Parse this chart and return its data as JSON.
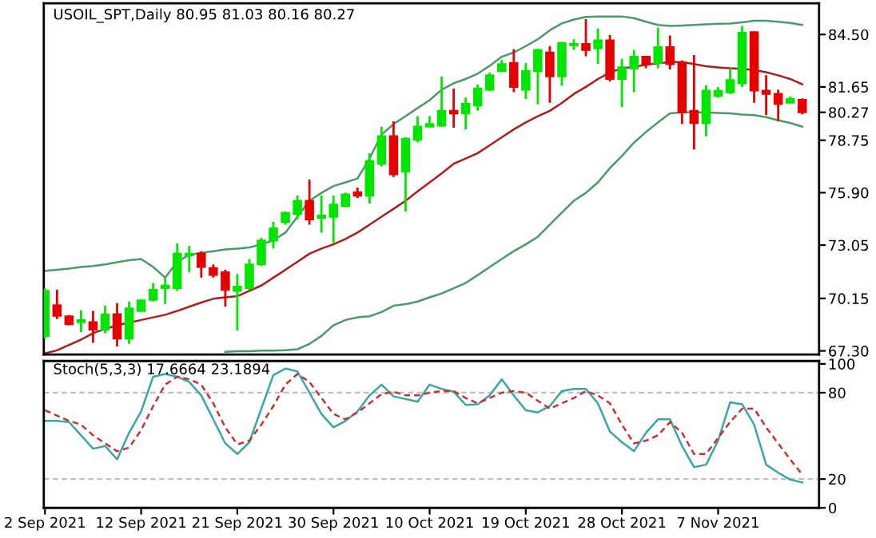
{
  "chart_data": [
    {
      "type": "candlestick",
      "title": "USOIL_SPT,Daily 80.95 81.03 80.16 80.27",
      "categories": [
        null,
        null,
        null,
        null,
        null,
        null,
        null,
        null,
        null,
        null,
        null,
        null,
        null,
        null,
        null,
        null,
        null,
        null,
        null,
        null,
        null,
        null,
        null,
        null,
        null,
        null,
        null,
        null,
        null,
        null,
        null,
        null,
        null,
        null,
        null,
        null,
        null,
        null,
        null,
        null,
        null,
        null,
        null,
        null,
        null,
        null,
        null,
        null,
        null,
        null,
        null,
        null,
        null,
        null,
        null,
        null,
        null,
        null,
        null,
        null,
        null,
        null,
        null,
        null
      ],
      "ohlc": [
        [
          68.11,
          70.7,
          67.97,
          70.56
        ],
        [
          69.78,
          70.62,
          69.03,
          69.21
        ],
        [
          69.18,
          69.24,
          68.69,
          68.75
        ],
        [
          68.86,
          69.5,
          68.31,
          68.98
        ],
        [
          68.86,
          69.47,
          67.74,
          68.46
        ],
        [
          68.46,
          69.76,
          68.26,
          69.27
        ],
        [
          69.29,
          69.9,
          67.54,
          67.97
        ],
        [
          67.97,
          69.98,
          67.68,
          69.61
        ],
        [
          69.47,
          70.09,
          69.47,
          70.04
        ],
        [
          70.07,
          70.99,
          69.98,
          70.62
        ],
        [
          70.71,
          71.28,
          69.84,
          70.85
        ],
        [
          70.71,
          73.15,
          70.56,
          72.58
        ],
        [
          72.49,
          73.01,
          71.57,
          72.58
        ],
        [
          72.58,
          72.72,
          71.28,
          71.86
        ],
        [
          71.8,
          72.0,
          71.28,
          71.43
        ],
        [
          71.57,
          71.71,
          69.7,
          70.62
        ],
        [
          70.56,
          71.48,
          68.41,
          70.79
        ],
        [
          70.71,
          72.29,
          70.62,
          72.0
        ],
        [
          72.0,
          73.44,
          71.91,
          73.3
        ],
        [
          73.3,
          74.31,
          72.87,
          73.96
        ],
        [
          74.31,
          74.88,
          74.16,
          74.8
        ],
        [
          74.74,
          75.74,
          74.45,
          75.46
        ],
        [
          75.46,
          76.61,
          74.16,
          74.45
        ],
        [
          74.53,
          75.74,
          73.73,
          74.65
        ],
        [
          74.59,
          75.74,
          73.15,
          75.25
        ],
        [
          75.17,
          75.89,
          75.11,
          75.8
        ],
        [
          75.92,
          76.18,
          75.6,
          75.74
        ],
        [
          75.74,
          78.05,
          75.31,
          77.62
        ],
        [
          77.47,
          79.49,
          77.33,
          78.97
        ],
        [
          78.97,
          79.78,
          76.75,
          76.9
        ],
        [
          77.04,
          78.91,
          74.88,
          78.83
        ],
        [
          78.77,
          80.06,
          78.63,
          79.49
        ],
        [
          79.49,
          80.06,
          79.49,
          79.63
        ],
        [
          79.55,
          82.22,
          79.49,
          80.35
        ],
        [
          80.35,
          81.56,
          79.43,
          80.21
        ],
        [
          80.21,
          81.07,
          79.34,
          80.73
        ],
        [
          80.64,
          81.79,
          80.35,
          81.56
        ],
        [
          81.5,
          82.43,
          81.42,
          82.28
        ],
        [
          82.51,
          83.12,
          82.51,
          82.89
        ],
        [
          82.95,
          83.71,
          81.36,
          81.65
        ],
        [
          81.5,
          82.95,
          80.99,
          82.51
        ],
        [
          82.51,
          83.72,
          80.7,
          83.66
        ],
        [
          83.52,
          83.87,
          80.79,
          82.22
        ],
        [
          82.22,
          84.1,
          81.71,
          84.04
        ],
        [
          83.92,
          84.24,
          83.66,
          83.98
        ],
        [
          83.98,
          85.33,
          83.32,
          83.66
        ],
        [
          83.75,
          84.82,
          82.89,
          84.18
        ],
        [
          84.18,
          84.47,
          81.94,
          82.08
        ],
        [
          82.08,
          83.18,
          80.55,
          82.71
        ],
        [
          82.66,
          83.66,
          81.36,
          83.29
        ],
        [
          83.29,
          83.32,
          82.66,
          82.89
        ],
        [
          82.95,
          84.87,
          82.66,
          83.81
        ],
        [
          83.81,
          84.44,
          82.6,
          82.89
        ],
        [
          82.95,
          83.09,
          79.63,
          80.27
        ],
        [
          80.35,
          83.38,
          78.25,
          79.69
        ],
        [
          79.69,
          81.74,
          78.97,
          81.45
        ],
        [
          81.16,
          81.65,
          81.07,
          81.45
        ],
        [
          81.36,
          82.66,
          81.27,
          82.02
        ],
        [
          81.85,
          84.96,
          81.65,
          84.59
        ],
        [
          84.62,
          84.67,
          80.79,
          81.45
        ],
        [
          81.45,
          82.28,
          80.12,
          81.27
        ],
        [
          81.27,
          81.5,
          79.78,
          80.73
        ],
        [
          80.79,
          81.13,
          80.76,
          80.99
        ],
        [
          80.95,
          81.03,
          80.16,
          80.27
        ]
      ],
      "colors": [
        "#00e600",
        "#e60000",
        "#e60000",
        "#00e600",
        "#e60000",
        "#00e600",
        "#e60000",
        "#00e600",
        "#00e600",
        "#00e600",
        "#00e600",
        "#00e600",
        "#00e600",
        "#e60000",
        "#e60000",
        "#e60000",
        "#00e600",
        "#00e600",
        "#00e600",
        "#00e600",
        "#00e600",
        "#00e600",
        "#e60000",
        "#00e600",
        "#00e600",
        "#00e600",
        "#e60000",
        "#00e600",
        "#00e600",
        "#e60000",
        "#00e600",
        "#00e600",
        "#00e600",
        "#00e600",
        "#e60000",
        "#00e600",
        "#00e600",
        "#00e600",
        "#00e600",
        "#e60000",
        "#00e600",
        "#00e600",
        "#e60000",
        "#00e600",
        "#00e600",
        "#e60000",
        "#00e600",
        "#e60000",
        "#00e600",
        "#00e600",
        "#e60000",
        "#00e600",
        "#e60000",
        "#e60000",
        "#e60000",
        "#00e600",
        "#00e600",
        "#00e600",
        "#00e600",
        "#e60000",
        "#e60000",
        "#e60000",
        "#00e600",
        "#e60000"
      ],
      "series": [
        {
          "type": "line",
          "color": "#4a9a6a",
          "values": [
            71.65,
            71.71,
            71.77,
            71.86,
            71.91,
            72.0,
            72.12,
            72.23,
            72.29,
            71.86,
            71.28,
            72.14,
            72.52,
            72.63,
            72.72,
            72.81,
            72.86,
            72.92,
            73.09,
            73.3,
            73.73,
            74.59,
            75.46,
            75.89,
            76.26,
            76.46,
            76.67,
            77.76,
            79.06,
            79.63,
            80.06,
            80.5,
            80.93,
            81.5,
            81.85,
            82.08,
            82.37,
            82.8,
            83.29,
            83.52,
            83.87,
            84.24,
            84.73,
            85.1,
            85.31,
            85.45,
            85.48,
            85.48,
            85.48,
            85.39,
            85.19,
            85.02,
            84.96,
            84.99,
            85.02,
            85.05,
            85.08,
            85.1,
            85.16,
            85.25,
            85.25,
            85.19,
            85.13,
            85.02
          ]
        },
        {
          "type": "line",
          "color": "#b01c1c",
          "values": [
            67.16,
            67.33,
            67.62,
            67.91,
            68.26,
            68.49,
            68.69,
            68.83,
            68.98,
            69.12,
            69.26,
            69.47,
            69.7,
            69.93,
            70.13,
            70.21,
            70.27,
            70.56,
            70.85,
            71.28,
            71.71,
            72.14,
            72.58,
            72.86,
            73.09,
            73.38,
            73.73,
            74.16,
            74.59,
            75.02,
            75.46,
            75.97,
            76.46,
            76.95,
            77.47,
            77.76,
            78.05,
            78.48,
            78.91,
            79.34,
            79.72,
            80.06,
            80.35,
            80.78,
            81.27,
            81.65,
            82.08,
            82.43,
            82.66,
            82.74,
            82.86,
            82.94,
            83.0,
            83.0,
            82.89,
            82.77,
            82.71,
            82.66,
            82.63,
            82.57,
            82.45,
            82.28,
            82.08,
            81.79
          ]
        },
        {
          "type": "line",
          "color": "#4a9a6a",
          "values": [
            null,
            null,
            null,
            null,
            null,
            null,
            null,
            null,
            null,
            null,
            null,
            null,
            null,
            null,
            null,
            67.25,
            67.28,
            67.28,
            67.31,
            67.31,
            67.33,
            67.39,
            67.68,
            68.11,
            68.69,
            68.98,
            69.12,
            69.18,
            69.41,
            69.75,
            69.84,
            69.98,
            70.21,
            70.42,
            70.7,
            70.99,
            71.42,
            71.86,
            72.29,
            72.72,
            73.09,
            73.5,
            74.16,
            74.82,
            75.46,
            75.89,
            76.46,
            77.24,
            77.9,
            78.62,
            79.2,
            79.72,
            80.21,
            80.27,
            80.27,
            80.27,
            80.24,
            80.21,
            80.15,
            80.12,
            80.01,
            79.83,
            79.69,
            79.49
          ]
        }
      ],
      "ylim": [
        67.1,
        86.2
      ],
      "yticks": [
        {
          "value": 84.5,
          "label": "84.50"
        },
        {
          "value": 81.65,
          "label": "81.65"
        },
        {
          "value": 80.27,
          "label": "80.27"
        },
        {
          "value": 78.75,
          "label": "78.75"
        },
        {
          "value": 75.9,
          "label": "75.90"
        },
        {
          "value": 73.05,
          "label": "73.05"
        },
        {
          "value": 70.15,
          "label": "70.15"
        },
        {
          "value": 67.3,
          "label": "67.30"
        }
      ],
      "tick_labels": "y"
    },
    {
      "type": "line",
      "title": "Stoch(5,3,3) 17.6664 23.1894",
      "categories": [
        "2 Sep 2021",
        null,
        null,
        null,
        null,
        null,
        null,
        null,
        "12 Sep 2021",
        null,
        null,
        null,
        null,
        null,
        null,
        null,
        "21 Sep 2021",
        null,
        null,
        null,
        null,
        null,
        null,
        null,
        "30 Sep 2021",
        null,
        null,
        null,
        null,
        null,
        null,
        null,
        "10 Oct 2021",
        null,
        null,
        null,
        null,
        null,
        null,
        null,
        "19 Oct 2021",
        null,
        null,
        null,
        null,
        null,
        null,
        null,
        "28 Oct 2021",
        null,
        null,
        null,
        null,
        null,
        null,
        null,
        "7 Nov 2021",
        null,
        null,
        null,
        null,
        null,
        null,
        null
      ],
      "series": [
        {
          "color": "#3aa6a6",
          "line_style": "solid",
          "values": [
            60.4,
            60.4,
            59.6,
            50.4,
            41.1,
            43.0,
            33.7,
            52.2,
            67.0,
            91.1,
            93.0,
            91.1,
            87.4,
            78.1,
            61.5,
            44.8,
            37.4,
            45.6,
            68.9,
            92.2,
            96.7,
            94.8,
            80.0,
            65.2,
            55.9,
            60.4,
            67.0,
            78.1,
            85.6,
            77.4,
            75.6,
            73.7,
            85.6,
            82.6,
            80.7,
            71.5,
            71.9,
            78.1,
            89.3,
            78.1,
            67.8,
            66.3,
            70.7,
            81.1,
            82.6,
            82.6,
            72.6,
            53.0,
            45.6,
            39.3,
            52.2,
            61.5,
            61.5,
            43.0,
            28.2,
            30.0,
            46.7,
            73.3,
            71.9,
            57.8,
            30.0,
            24.4,
            19.6,
            17.67
          ]
        },
        {
          "color": "#c83232",
          "line_style": "dashed",
          "values": [
            67.8,
            64.1,
            60.4,
            57.8,
            50.4,
            44.8,
            39.3,
            41.9,
            54.1,
            70.7,
            85.6,
            91.1,
            89.3,
            85.6,
            72.6,
            55.9,
            44.1,
            46.7,
            57.8,
            70.7,
            85.6,
            93.0,
            87.4,
            76.3,
            65.2,
            61.5,
            66.3,
            72.6,
            78.9,
            80.7,
            78.1,
            78.1,
            80.0,
            81.1,
            81.1,
            76.3,
            72.6,
            76.3,
            80.0,
            81.1,
            80.0,
            74.4,
            68.9,
            72.6,
            76.3,
            81.1,
            78.1,
            72.6,
            57.8,
            44.8,
            46.7,
            50.4,
            59.6,
            52.2,
            37.4,
            37.4,
            48.5,
            59.6,
            68.9,
            68.9,
            55.9,
            44.8,
            33.7,
            23.19
          ]
        }
      ],
      "ylim": [
        0,
        102
      ],
      "yticks": [
        100,
        80,
        20,
        0
      ],
      "ref_lines": [
        {
          "axis": "y",
          "value": 80,
          "color": "#c0c0c0",
          "line_style": "dashed"
        },
        {
          "axis": "y",
          "value": 20,
          "color": "#c0c0c0",
          "line_style": "dashed"
        }
      ]
    }
  ]
}
